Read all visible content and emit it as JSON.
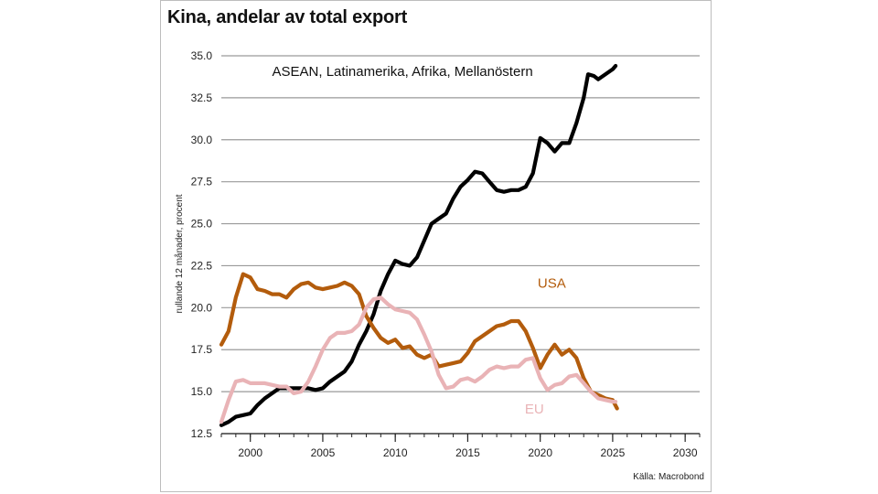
{
  "chart_data": {
    "type": "line",
    "title": "Kina, andelar av total export",
    "ylabel": "rullande 12 månader, procent",
    "xlabel": "",
    "xlim": [
      1998,
      2031
    ],
    "ylim": [
      12.5,
      35.0
    ],
    "yticks": [
      "12.5",
      "15.0",
      "17.5",
      "20.0",
      "22.5",
      "25.0",
      "27.5",
      "30.0",
      "32.5",
      "35.0"
    ],
    "xticks": [
      "2000",
      "2005",
      "2010",
      "2015",
      "2020",
      "2025",
      "2030"
    ],
    "grid": "horizontal",
    "source": "Källa: Macrobond",
    "series": [
      {
        "name": "ASEAN, Latinamerika, Afrika, Mellanöstern",
        "color": "#000000",
        "points": [
          [
            1998.0,
            13.0
          ],
          [
            1998.5,
            13.2
          ],
          [
            1999.0,
            13.5
          ],
          [
            1999.5,
            13.6
          ],
          [
            2000.0,
            13.7
          ],
          [
            2000.5,
            14.2
          ],
          [
            2001.0,
            14.6
          ],
          [
            2001.5,
            14.9
          ],
          [
            2002.0,
            15.2
          ],
          [
            2003.0,
            15.2
          ],
          [
            2004.0,
            15.2
          ],
          [
            2004.5,
            15.1
          ],
          [
            2005.0,
            15.2
          ],
          [
            2005.5,
            15.6
          ],
          [
            2006.0,
            15.9
          ],
          [
            2006.5,
            16.2
          ],
          [
            2007.0,
            16.8
          ],
          [
            2007.5,
            17.8
          ],
          [
            2008.0,
            18.6
          ],
          [
            2008.5,
            19.6
          ],
          [
            2009.0,
            21.0
          ],
          [
            2009.5,
            22.0
          ],
          [
            2010.0,
            22.8
          ],
          [
            2010.5,
            22.6
          ],
          [
            2011.0,
            22.5
          ],
          [
            2011.5,
            23.0
          ],
          [
            2012.0,
            24.0
          ],
          [
            2012.5,
            25.0
          ],
          [
            2013.0,
            25.3
          ],
          [
            2013.5,
            25.6
          ],
          [
            2014.0,
            26.5
          ],
          [
            2014.5,
            27.2
          ],
          [
            2015.0,
            27.6
          ],
          [
            2015.5,
            28.1
          ],
          [
            2016.0,
            28.0
          ],
          [
            2016.5,
            27.5
          ],
          [
            2017.0,
            27.0
          ],
          [
            2017.5,
            26.9
          ],
          [
            2018.0,
            27.0
          ],
          [
            2018.5,
            27.0
          ],
          [
            2019.0,
            27.2
          ],
          [
            2019.5,
            28.0
          ],
          [
            2020.0,
            30.1
          ],
          [
            2020.5,
            29.8
          ],
          [
            2021.0,
            29.3
          ],
          [
            2021.5,
            29.8
          ],
          [
            2022.0,
            29.8
          ],
          [
            2022.5,
            31.0
          ],
          [
            2023.0,
            32.5
          ],
          [
            2023.3,
            33.9
          ],
          [
            2023.7,
            33.8
          ],
          [
            2024.0,
            33.6
          ],
          [
            2024.5,
            33.9
          ],
          [
            2025.0,
            34.2
          ],
          [
            2025.2,
            34.4
          ]
        ]
      },
      {
        "name": "USA",
        "color": "#b35c0c",
        "points": [
          [
            1998.0,
            17.8
          ],
          [
            1998.5,
            18.6
          ],
          [
            1999.0,
            20.6
          ],
          [
            1999.5,
            22.0
          ],
          [
            2000.0,
            21.8
          ],
          [
            2000.5,
            21.1
          ],
          [
            2001.0,
            21.0
          ],
          [
            2001.5,
            20.8
          ],
          [
            2002.0,
            20.8
          ],
          [
            2002.5,
            20.6
          ],
          [
            2003.0,
            21.1
          ],
          [
            2003.5,
            21.4
          ],
          [
            2004.0,
            21.5
          ],
          [
            2004.5,
            21.2
          ],
          [
            2005.0,
            21.1
          ],
          [
            2005.5,
            21.2
          ],
          [
            2006.0,
            21.3
          ],
          [
            2006.5,
            21.5
          ],
          [
            2007.0,
            21.3
          ],
          [
            2007.5,
            20.8
          ],
          [
            2008.0,
            19.5
          ],
          [
            2008.5,
            18.8
          ],
          [
            2009.0,
            18.2
          ],
          [
            2009.5,
            17.9
          ],
          [
            2010.0,
            18.1
          ],
          [
            2010.5,
            17.6
          ],
          [
            2011.0,
            17.7
          ],
          [
            2011.5,
            17.2
          ],
          [
            2012.0,
            17.0
          ],
          [
            2012.5,
            17.2
          ],
          [
            2013.0,
            16.5
          ],
          [
            2013.5,
            16.6
          ],
          [
            2014.0,
            16.7
          ],
          [
            2014.5,
            16.8
          ],
          [
            2015.0,
            17.3
          ],
          [
            2015.5,
            18.0
          ],
          [
            2016.0,
            18.3
          ],
          [
            2016.5,
            18.6
          ],
          [
            2017.0,
            18.9
          ],
          [
            2017.5,
            19.0
          ],
          [
            2018.0,
            19.2
          ],
          [
            2018.5,
            19.2
          ],
          [
            2019.0,
            18.6
          ],
          [
            2019.5,
            17.6
          ],
          [
            2020.0,
            16.4
          ],
          [
            2020.5,
            17.2
          ],
          [
            2021.0,
            17.8
          ],
          [
            2021.5,
            17.2
          ],
          [
            2022.0,
            17.5
          ],
          [
            2022.5,
            17.0
          ],
          [
            2023.0,
            15.8
          ],
          [
            2023.5,
            15.0
          ],
          [
            2024.0,
            14.8
          ],
          [
            2024.5,
            14.6
          ],
          [
            2025.0,
            14.5
          ],
          [
            2025.3,
            14.0
          ]
        ]
      },
      {
        "name": "EU",
        "color": "#e9b3b6",
        "points": [
          [
            1998.0,
            13.2
          ],
          [
            1998.5,
            14.5
          ],
          [
            1999.0,
            15.6
          ],
          [
            1999.5,
            15.7
          ],
          [
            2000.0,
            15.5
          ],
          [
            2001.0,
            15.5
          ],
          [
            2002.0,
            15.3
          ],
          [
            2002.5,
            15.3
          ],
          [
            2003.0,
            14.9
          ],
          [
            2003.5,
            15.0
          ],
          [
            2004.0,
            15.6
          ],
          [
            2004.5,
            16.5
          ],
          [
            2005.0,
            17.5
          ],
          [
            2005.5,
            18.2
          ],
          [
            2006.0,
            18.5
          ],
          [
            2006.5,
            18.5
          ],
          [
            2007.0,
            18.6
          ],
          [
            2007.5,
            19.0
          ],
          [
            2008.0,
            20.0
          ],
          [
            2008.5,
            20.5
          ],
          [
            2009.0,
            20.6
          ],
          [
            2009.5,
            20.2
          ],
          [
            2010.0,
            19.9
          ],
          [
            2010.5,
            19.8
          ],
          [
            2011.0,
            19.7
          ],
          [
            2011.5,
            19.3
          ],
          [
            2012.0,
            18.4
          ],
          [
            2012.5,
            17.4
          ],
          [
            2013.0,
            16.0
          ],
          [
            2013.5,
            15.2
          ],
          [
            2014.0,
            15.3
          ],
          [
            2014.5,
            15.7
          ],
          [
            2015.0,
            15.8
          ],
          [
            2015.5,
            15.6
          ],
          [
            2016.0,
            15.9
          ],
          [
            2016.5,
            16.3
          ],
          [
            2017.0,
            16.5
          ],
          [
            2017.5,
            16.4
          ],
          [
            2018.0,
            16.5
          ],
          [
            2018.5,
            16.5
          ],
          [
            2019.0,
            16.9
          ],
          [
            2019.5,
            17.0
          ],
          [
            2020.0,
            15.8
          ],
          [
            2020.5,
            15.1
          ],
          [
            2021.0,
            15.4
          ],
          [
            2021.5,
            15.5
          ],
          [
            2022.0,
            15.9
          ],
          [
            2022.5,
            16.0
          ],
          [
            2023.0,
            15.5
          ],
          [
            2023.5,
            15.0
          ],
          [
            2024.0,
            14.6
          ],
          [
            2024.5,
            14.5
          ],
          [
            2025.0,
            14.4
          ],
          [
            2025.2,
            14.4
          ]
        ]
      }
    ],
    "annotations": [
      {
        "text": "ASEAN, Latinamerika, Afrika, Mellanöstern",
        "x": 2010.5,
        "y": 33.8,
        "color": "#111111"
      },
      {
        "text": "USA",
        "x": 2020.8,
        "y": 21.2,
        "color": "#b35c0c"
      },
      {
        "text": "EU",
        "x": 2019.6,
        "y": 13.7,
        "color": "#e9b3b6"
      }
    ]
  }
}
